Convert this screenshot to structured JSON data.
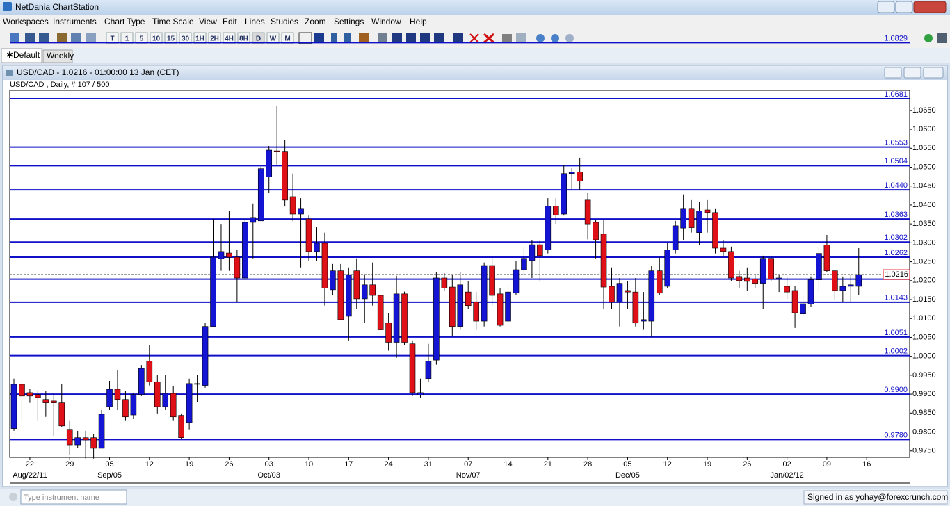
{
  "app": {
    "title": "NetDania ChartStation",
    "menu": [
      "Workspaces",
      "Instruments",
      "Chart Type",
      "Time Scale",
      "View",
      "Edit",
      "Lines",
      "Studies",
      "Zoom",
      "Settings",
      "Window",
      "Help"
    ],
    "timeframes": [
      "T",
      "1",
      "5",
      "10",
      "15",
      "30",
      "1H",
      "2H",
      "4H",
      "8H",
      "D",
      "W",
      "M"
    ],
    "tabs": [
      "Default",
      "Weekly"
    ],
    "chart_window_title": "USD/CAD - 1.0216 - 01:00:00  13 Jan (CET)",
    "search_placeholder": "Type instrument name",
    "status": "Signed in as yohay@forexcrunch.com"
  },
  "chart_data": {
    "type": "candlestick",
    "subtitle": "USD/CAD , Daily, # 107 / 500",
    "up_color": "#1414d4",
    "down_color": "#e01018",
    "level_color": "#1010c8",
    "ylim": [
      0.9733,
      1.0703
    ],
    "yticks": [
      {
        "value": 0.975,
        "label": "0.9750"
      },
      {
        "value": 0.98,
        "label": "0.9800"
      },
      {
        "value": 0.985,
        "label": "0.9850"
      },
      {
        "value": 0.99,
        "label": "0.9900"
      },
      {
        "value": 0.995,
        "label": "0.9950"
      },
      {
        "value": 1.0,
        "label": "1.0000"
      },
      {
        "value": 1.005,
        "label": "1.0050"
      },
      {
        "value": 1.01,
        "label": "1.0100"
      },
      {
        "value": 1.015,
        "label": "1.0150"
      },
      {
        "value": 1.02,
        "label": "1.0200"
      },
      {
        "value": 1.025,
        "label": "1.0250"
      },
      {
        "value": 1.03,
        "label": "1.0300"
      },
      {
        "value": 1.035,
        "label": "1.0350"
      },
      {
        "value": 1.04,
        "label": "1.0400"
      },
      {
        "value": 1.045,
        "label": "1.0450"
      },
      {
        "value": 1.05,
        "label": "1.0500"
      },
      {
        "value": 1.055,
        "label": "1.0550"
      },
      {
        "value": 1.06,
        "label": "1.0600"
      },
      {
        "value": 1.065,
        "label": "1.0650"
      }
    ],
    "levels": [
      1.0681,
      1.0553,
      1.0504,
      {
        "value": 1.044,
        "label": "1.0440"
      },
      1.0363,
      1.0302,
      1.0262,
      1.0204,
      1.0143,
      1.0051,
      1.0002,
      {
        "value": 0.99,
        "label": "0.9900"
      },
      1.0829,
      {
        "value": 0.978,
        "label": "0.9780"
      }
    ],
    "last": 1.0216,
    "xticks": [
      {
        "value": 2,
        "label": "22"
      },
      {
        "value": 7,
        "label": "29"
      },
      {
        "value": 12,
        "label": "05"
      },
      {
        "value": 17,
        "label": "12"
      },
      {
        "value": 22,
        "label": "19"
      },
      {
        "value": 27,
        "label": "26"
      },
      {
        "value": 32,
        "label": "03"
      },
      {
        "value": 37,
        "label": "10"
      },
      {
        "value": 42,
        "label": "17"
      },
      {
        "value": 47,
        "label": "24"
      },
      {
        "value": 52,
        "label": "31"
      },
      {
        "value": 57,
        "label": "07"
      },
      {
        "value": 62,
        "label": "14"
      },
      {
        "value": 67,
        "label": "21"
      },
      {
        "value": 72,
        "label": "28"
      },
      {
        "value": 77,
        "label": "05"
      },
      {
        "value": 82,
        "label": "12"
      },
      {
        "value": 87,
        "label": "19"
      },
      {
        "value": 92,
        "label": "26"
      },
      {
        "value": 97,
        "label": "02"
      },
      {
        "value": 102,
        "label": "09"
      },
      {
        "value": 107,
        "label": "16"
      }
    ],
    "month_labels": [
      {
        "value": 2,
        "label": "Aug/22/11"
      },
      {
        "value": 12,
        "label": "Sep/05"
      },
      {
        "value": 32,
        "label": "Oct/03"
      },
      {
        "value": 57,
        "label": "Nov/07"
      },
      {
        "value": 77,
        "label": "Dec/05"
      },
      {
        "value": 97,
        "label": "Jan/02/12"
      }
    ],
    "open": [
      0.9809,
      0.9926,
      0.9904,
      0.9899,
      0.9886,
      0.9882,
      0.9877,
      0.9807,
      0.9766,
      0.9785,
      0.9785,
      0.9757,
      0.9867,
      0.9913,
      0.9886,
      0.9845,
      0.9899,
      0.9987,
      0.9932,
      0.9867,
      0.9902,
      0.9844,
      0.9825,
      0.9926,
      0.9923,
      1.0079,
      1.0258,
      1.0273,
      1.0262,
      1.0207,
      1.0354,
      1.0358,
      1.0474,
      1.0543,
      1.0542,
      1.0422,
      1.0376,
      1.0363,
      1.0277,
      1.0299,
      1.0176,
      1.0226,
      1.0106,
      1.0226,
      1.0152,
      1.0189,
      1.0161,
      1.0088,
      1.0037,
      1.0165,
      1.0033,
      0.9897,
      0.9941,
      0.999,
      1.0207,
      1.0183,
      1.0079,
      1.017,
      1.0143,
      1.0093,
      1.024,
      1.0165,
      1.0093,
      1.0167,
      1.0229,
      1.0253,
      1.0295,
      1.0281,
      1.0397,
      1.0376,
      1.0483,
      1.0487,
      1.0413,
      1.0354,
      1.0323,
      1.0185,
      1.0143,
      1.0174,
      1.017,
      1.0093,
      1.0093,
      1.0226,
      1.0185,
      1.0281,
      1.0339,
      1.0391,
      1.0327,
      1.0387,
      1.038,
      1.0286,
      1.0277,
      1.0211,
      1.0207,
      1.0204,
      1.0193,
      1.0259,
      1.0204,
      1.0185,
      1.0174,
      1.0112,
      1.0138,
      1.0202,
      1.0294,
      1.0226,
      1.0174,
      1.0185,
      1.0185
    ],
    "high": [
      0.9941,
      0.9932,
      0.9913,
      0.991,
      0.9908,
      0.9904,
      0.9926,
      0.9831,
      0.9803,
      0.9803,
      0.9794,
      0.9858,
      0.9935,
      0.9963,
      0.9908,
      0.9904,
      0.9977,
      1.0029,
      0.995,
      0.995,
      0.9922,
      0.9849,
      0.9941,
      0.995,
      1.0088,
      1.0363,
      1.035,
      1.0385,
      1.0281,
      1.0363,
      1.0404,
      1.0501,
      1.0556,
      1.0661,
      1.0571,
      1.0483,
      1.0418,
      1.0372,
      1.0341,
      1.0327,
      1.0244,
      1.0244,
      1.0235,
      1.0259,
      1.0216,
      1.0248,
      1.0161,
      1.0115,
      1.0213,
      1.0171,
      1.0042,
      0.9941,
      1.0033,
      1.0222,
      1.022,
      1.0216,
      1.0222,
      1.0198,
      1.017,
      1.0248,
      1.0262,
      1.018,
      1.0189,
      1.0253,
      1.029,
      1.0308,
      1.0308,
      1.0418,
      1.0418,
      1.0505,
      1.0497,
      1.0525,
      1.0433,
      1.0361,
      1.0361,
      1.0235,
      1.0207,
      1.0198,
      1.0207,
      1.017,
      1.024,
      1.0262,
      1.0299,
      1.0358,
      1.0428,
      1.0413,
      1.0409,
      1.0413,
      1.0391,
      1.0308,
      1.029,
      1.0226,
      1.0235,
      1.0216,
      1.0266,
      1.0266,
      1.0216,
      1.0211,
      1.0185,
      1.0161,
      1.0211,
      1.029,
      1.0321,
      1.0229,
      1.0211,
      1.0216,
      1.0286
    ],
    "low": [
      0.9803,
      0.9827,
      0.9877,
      0.9831,
      0.984,
      0.9789,
      0.9812,
      0.9739,
      0.9757,
      0.973,
      0.973,
      0.9757,
      0.9858,
      0.9858,
      0.9831,
      0.9834,
      0.9895,
      0.9923,
      0.9849,
      0.9858,
      0.9831,
      0.9781,
      0.9807,
      0.988,
      0.9917,
      1.0079,
      1.0226,
      1.0226,
      1.0143,
      1.0207,
      1.0259,
      1.0358,
      1.0431,
      1.0507,
      1.0396,
      1.0358,
      1.0235,
      1.0253,
      1.0253,
      1.0134,
      1.0161,
      1.0097,
      1.0042,
      1.0125,
      1.0088,
      1.0134,
      1.007,
      1.0015,
      0.9996,
      1.0029,
      0.9895,
      0.9891,
      0.9932,
      0.9978,
      1.0174,
      1.0053,
      1.007,
      1.0125,
      1.007,
      1.0079,
      1.0134,
      1.0079,
      1.0088,
      1.0161,
      1.0216,
      1.0207,
      1.0198,
      1.0272,
      1.035,
      1.0372,
      1.0442,
      1.044,
      1.0309,
      1.0259,
      1.0125,
      1.0125,
      1.0079,
      1.0125,
      1.0079,
      1.007,
      1.0051,
      1.0161,
      1.018,
      1.0272,
      1.0308,
      1.0327,
      1.0295,
      1.0327,
      1.0272,
      1.0266,
      1.0198,
      1.018,
      1.0174,
      1.018,
      1.0125,
      1.0198,
      1.017,
      1.0152,
      1.0075,
      1.0106,
      1.013,
      1.017,
      1.0222,
      1.0148,
      1.0143,
      1.0143,
      1.0161
    ],
    "close": [
      0.9926,
      0.9895,
      0.9895,
      0.9891,
      0.9877,
      0.9877,
      0.9816,
      0.9766,
      0.9785,
      0.9779,
      0.9757,
      0.9847,
      0.9913,
      0.9886,
      0.984,
      0.9899,
      0.9968,
      0.9932,
      0.9867,
      0.9902,
      0.984,
      0.9785,
      0.9928,
      0.9928,
      1.0079,
      1.0262,
      1.0277,
      1.0262,
      1.0207,
      1.0354,
      1.0367,
      1.0496,
      1.0545,
      1.0542,
      1.0413,
      1.0376,
      1.0391,
      1.0277,
      1.0299,
      1.018,
      1.0226,
      1.0097,
      1.0216,
      1.0152,
      1.0189,
      1.0161,
      1.007,
      1.0037,
      1.0165,
      1.0037,
      0.9904,
      0.9904,
      0.9987,
      1.0207,
      1.018,
      1.0079,
      1.0189,
      1.0134,
      1.0093,
      1.024,
      1.0161,
      1.0082,
      1.017,
      1.0229,
      1.0259,
      1.0295,
      1.0266,
      1.0397,
      1.0373,
      1.0483,
      1.0487,
      1.0463,
      1.035,
      1.0308,
      1.0183,
      1.0143,
      1.0193,
      1.017,
      1.0088,
      1.0097,
      1.0226,
      1.0167,
      1.0281,
      1.0345,
      1.0391,
      1.034,
      1.0384,
      1.038,
      1.0286,
      1.0277,
      1.0207,
      1.02,
      1.0198,
      1.0193,
      1.0259,
      1.0204,
      1.0207,
      1.017,
      1.0115,
      1.0139,
      1.0202,
      1.0272,
      1.0226,
      1.0174,
      1.0185,
      1.0189,
      1.0216
    ]
  }
}
